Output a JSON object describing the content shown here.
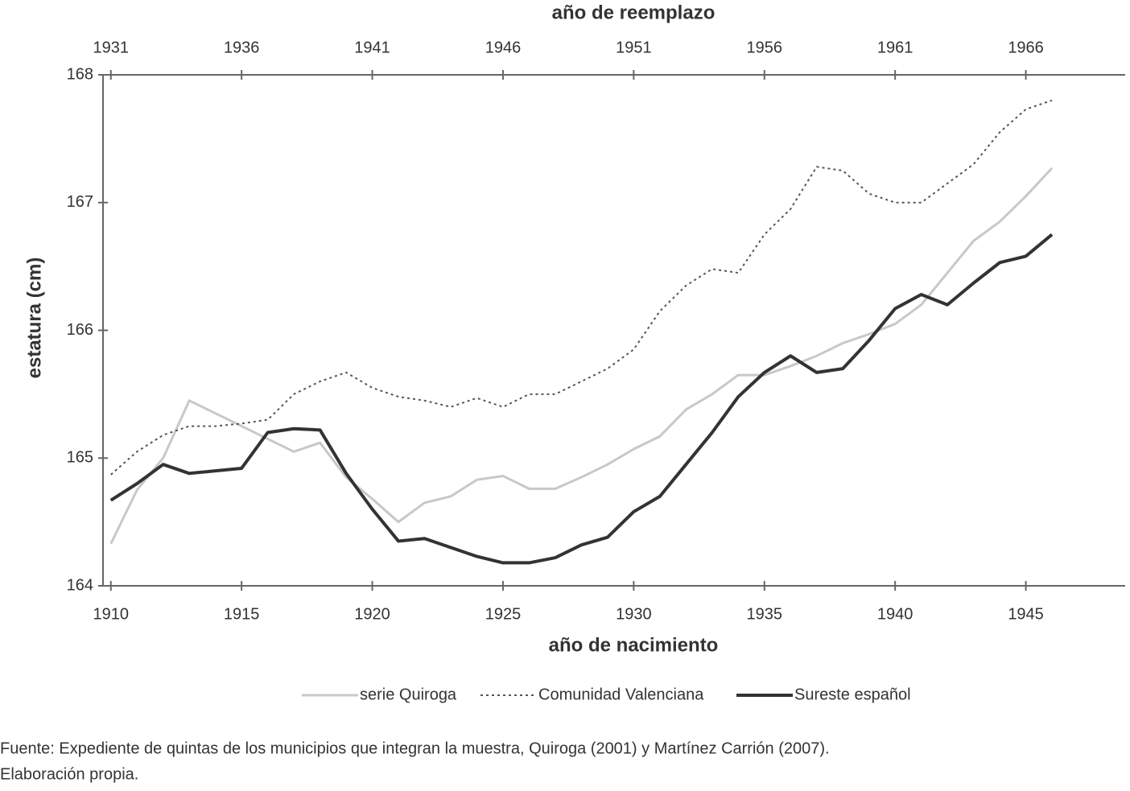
{
  "chart_data": {
    "type": "line",
    "xlabel": "año de nacimiento",
    "x2label": "año de reemplazo",
    "ylabel": "estatura (cm)",
    "x": [
      1910,
      1911,
      1912,
      1913,
      1914,
      1915,
      1916,
      1917,
      1918,
      1919,
      1920,
      1921,
      1922,
      1923,
      1924,
      1925,
      1926,
      1927,
      1928,
      1929,
      1930,
      1931,
      1932,
      1933,
      1934,
      1935,
      1936,
      1937,
      1938,
      1939,
      1940,
      1941,
      1942,
      1943,
      1944,
      1945,
      1946
    ],
    "series": [
      {
        "name": "serie Quiroga",
        "color": "#c8c8c8",
        "line_style": "solid",
        "line_width": 3,
        "values": [
          164.33,
          164.75,
          165.0,
          165.45,
          165.35,
          165.25,
          165.15,
          165.05,
          165.12,
          164.85,
          164.68,
          164.5,
          164.65,
          164.7,
          164.83,
          164.86,
          164.76,
          164.76,
          164.85,
          164.95,
          165.07,
          165.17,
          165.38,
          165.5,
          165.65,
          165.65,
          165.72,
          165.8,
          165.9,
          165.97,
          166.05,
          166.2,
          166.45,
          166.7,
          166.85,
          167.05,
          167.27
        ]
      },
      {
        "name": "Comunidad Valenciana",
        "color": "#555555",
        "line_style": "dotted",
        "line_width": 2,
        "values": [
          164.87,
          165.05,
          165.18,
          165.25,
          165.25,
          165.27,
          165.3,
          165.5,
          165.6,
          165.67,
          165.55,
          165.48,
          165.45,
          165.4,
          165.47,
          165.4,
          165.5,
          165.5,
          165.6,
          165.7,
          165.85,
          166.15,
          166.35,
          166.48,
          166.45,
          166.75,
          166.95,
          167.28,
          167.25,
          167.07,
          167.0,
          167.0,
          167.15,
          167.3,
          167.55,
          167.73,
          167.8
        ]
      },
      {
        "name": "Sureste español",
        "color": "#333333",
        "line_style": "solid",
        "line_width": 4,
        "values": [
          164.67,
          164.8,
          164.95,
          164.88,
          164.9,
          164.92,
          165.2,
          165.23,
          165.22,
          164.88,
          164.6,
          164.35,
          164.37,
          164.3,
          164.23,
          164.18,
          164.18,
          164.22,
          164.32,
          164.38,
          164.58,
          164.7,
          164.95,
          165.2,
          165.48,
          165.67,
          165.8,
          165.67,
          165.7,
          165.92,
          166.17,
          166.28,
          166.2,
          166.37,
          166.53,
          166.58,
          166.75
        ]
      }
    ],
    "xlim": [
      1909.7,
      1948.8
    ],
    "xticks": [
      1910,
      1915,
      1920,
      1925,
      1930,
      1935,
      1940,
      1945
    ],
    "x2lim": [
      1930.7,
      1969.8
    ],
    "x2ticks": [
      1931,
      1936,
      1941,
      1946,
      1951,
      1956,
      1961,
      1966
    ],
    "ylim": [
      164,
      168
    ],
    "yticks": [
      164,
      165,
      166,
      167,
      168
    ],
    "grid": false,
    "legend": "bottom",
    "source": [
      "Fuente: Expediente de quintas de los municipios que integran la muestra, Quiroga (2001) y Martínez Carrión (2007).",
      "Elaboración propia."
    ]
  }
}
